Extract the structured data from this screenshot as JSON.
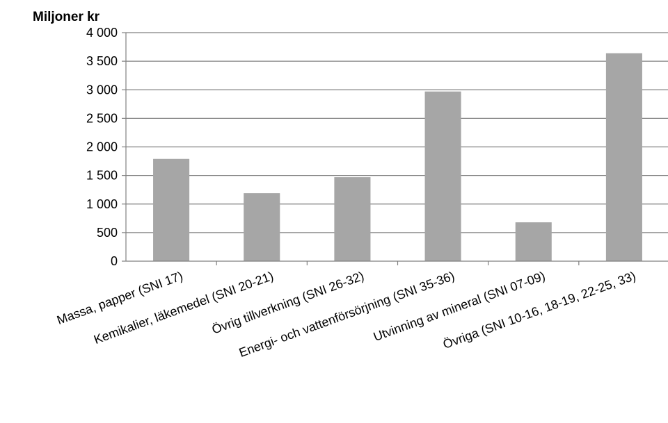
{
  "chart_data": {
    "type": "bar",
    "ylabel": "Miljoner kr",
    "xlabel": "",
    "ylim": [
      0,
      4000
    ],
    "yticks": [
      0,
      500,
      1000,
      1500,
      2000,
      2500,
      3000,
      3500,
      4000
    ],
    "ytick_labels": [
      "0",
      "500",
      "1 000",
      "1 500",
      "2 000",
      "2 500",
      "3 000",
      "3 500",
      "4 000"
    ],
    "categories": [
      "Massa, papper (SNI 17)",
      "Kemikalier, läkemedel (SNI 20-21)",
      "Övrig tillverkning (SNI 26-32)",
      "Energi- och vattenförsörjning (SNI 35-36)",
      "Utvinning av mineral (SNI 07-09)",
      "Övriga (SNI 10-16, 18-19, 22-25, 33)"
    ],
    "values": [
      1790,
      1190,
      1470,
      2970,
      680,
      3640
    ],
    "grid": true,
    "bar_color": "#a6a6a6",
    "grid_color": "#808080",
    "legend": "none"
  }
}
